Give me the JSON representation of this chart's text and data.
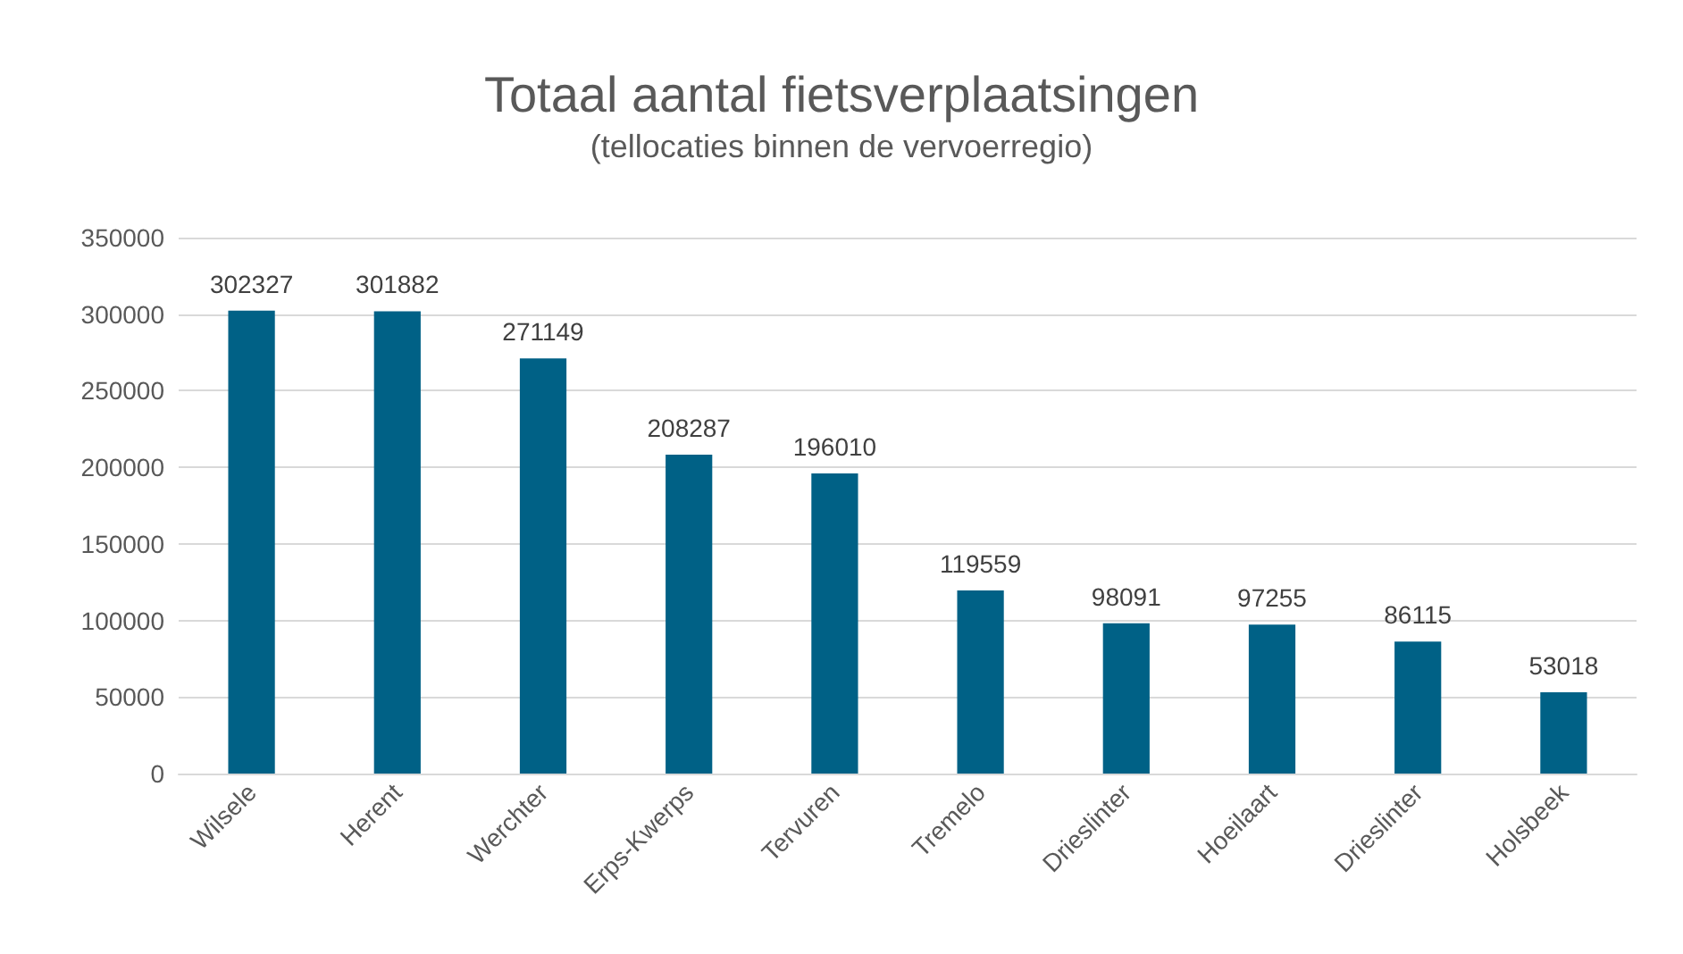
{
  "chart_data": {
    "type": "bar",
    "title": "Totaal aantal fietsverplaatsingen",
    "subtitle": "(tellocaties binnen de vervoerregio)",
    "categories": [
      "Wilsele",
      "Herent",
      "Werchter",
      "Erps-Kwerps",
      "Tervuren",
      "Tremelo",
      "Drieslinter",
      "Hoeilaart",
      "Drieslinter",
      "Holsbeek"
    ],
    "values": [
      302327,
      301882,
      271149,
      208287,
      196010,
      119559,
      98091,
      97255,
      86115,
      53018
    ],
    "color": "#006186",
    "ylim": [
      0,
      350000
    ],
    "yticks": [
      0,
      50000,
      100000,
      150000,
      200000,
      250000,
      300000,
      350000
    ],
    "grid": "y",
    "data_labels": true
  }
}
